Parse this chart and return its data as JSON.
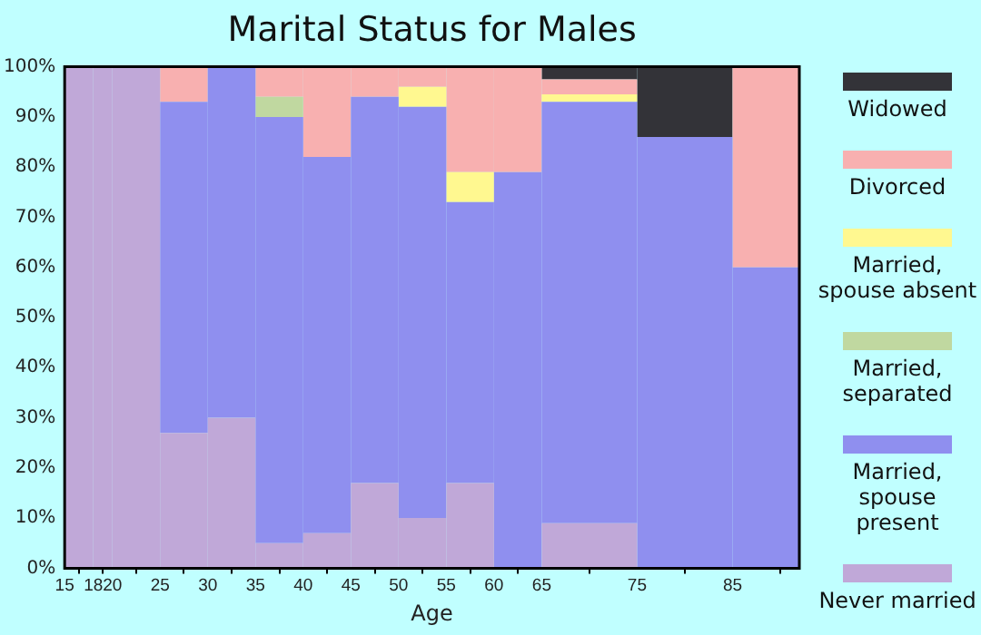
{
  "chart_data": {
    "type": "bar",
    "title": "Marital Status for Males",
    "xlabel": "Age",
    "stacked": true,
    "legend": "right",
    "x": [
      16.5,
      19,
      22.5,
      27.5,
      32.5,
      37.5,
      42.5,
      47.5,
      52.5,
      57.5,
      62.5,
      70,
      80,
      88.5
    ],
    "xlim": [
      15,
      92
    ],
    "xticks": [
      15,
      18,
      20,
      25,
      30,
      35,
      40,
      45,
      50,
      55,
      60,
      65,
      75,
      85
    ],
    "ylim": [
      0,
      100
    ],
    "yticks": [
      {
        "value": 0,
        "label": "0%"
      },
      {
        "value": 10,
        "label": "10%"
      },
      {
        "value": 20,
        "label": "20%"
      },
      {
        "value": 30,
        "label": "30%"
      },
      {
        "value": 40,
        "label": "40%"
      },
      {
        "value": 50,
        "label": "50%"
      },
      {
        "value": 60,
        "label": "60%"
      },
      {
        "value": 70,
        "label": "70%"
      },
      {
        "value": 80,
        "label": "80%"
      },
      {
        "value": 90,
        "label": "90%"
      },
      {
        "value": 100,
        "label": "100%"
      }
    ],
    "series": [
      {
        "name": "Never married",
        "color": "#c0a8d8",
        "values": [
          100,
          100,
          100,
          27,
          30,
          5,
          7,
          17,
          10,
          17,
          0,
          9,
          0,
          0
        ]
      },
      {
        "name": "Married, spouse present",
        "color": "#8f8fef",
        "values": [
          0,
          0,
          0,
          66,
          70,
          85,
          75,
          77,
          82,
          56,
          79,
          84,
          86,
          60
        ]
      },
      {
        "name": "Married, separated",
        "color": "#c0d8a0",
        "values": [
          0,
          0,
          0,
          0,
          0,
          4,
          0,
          0,
          0,
          0,
          0,
          0,
          0,
          0
        ]
      },
      {
        "name": "Married, spouse absent",
        "color": "#fff890",
        "values": [
          0,
          0,
          0,
          0,
          0,
          0,
          0,
          0,
          4,
          6,
          0,
          1.5,
          0,
          0
        ]
      },
      {
        "name": "Divorced",
        "color": "#f8b0b0",
        "values": [
          0,
          0,
          0,
          7,
          0,
          6,
          18,
          6,
          4,
          21,
          21,
          3,
          0,
          40
        ]
      },
      {
        "name": "Widowed",
        "color": "#333338",
        "values": [
          0,
          0,
          0,
          0,
          0,
          0,
          0,
          0,
          0,
          0,
          0,
          2.5,
          14,
          0
        ]
      }
    ]
  }
}
